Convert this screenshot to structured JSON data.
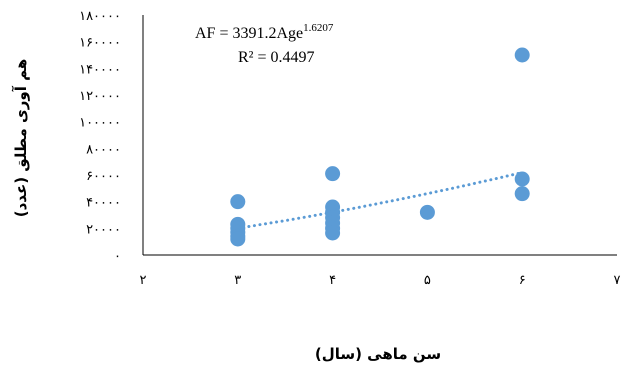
{
  "chart_data": {
    "type": "scatter",
    "title": "",
    "xlabel": "سن ماهی (سال)",
    "ylabel": "هم آوری مطلق (عدد)",
    "xlim": [
      2,
      7
    ],
    "ylim": [
      0,
      180000
    ],
    "x_ticks": [
      2,
      3,
      4,
      5,
      6,
      7
    ],
    "x_tick_labels": [
      "۲",
      "۳",
      "۴",
      "۵",
      "۶",
      "۷"
    ],
    "y_ticks": [
      0,
      20000,
      40000,
      60000,
      80000,
      100000,
      120000,
      140000,
      160000,
      180000
    ],
    "y_tick_labels": [
      "۰",
      "۲۰۰۰۰",
      "۴۰۰۰۰",
      "۶۰۰۰۰",
      "۸۰۰۰۰",
      "۱۰۰۰۰۰",
      "۱۲۰۰۰۰",
      "۱۴۰۰۰۰",
      "۱۶۰۰۰۰",
      "۱۸۰۰۰۰"
    ],
    "grid": false,
    "marker_color": "#5b9bd5",
    "trendline_color": "#5b9bd5",
    "points": [
      {
        "x": 3,
        "y": 40000
      },
      {
        "x": 3,
        "y": 23000
      },
      {
        "x": 3,
        "y": 20000
      },
      {
        "x": 3,
        "y": 17000
      },
      {
        "x": 3,
        "y": 14000
      },
      {
        "x": 3,
        "y": 12000
      },
      {
        "x": 4,
        "y": 61000
      },
      {
        "x": 4,
        "y": 36000
      },
      {
        "x": 4,
        "y": 32000
      },
      {
        "x": 4,
        "y": 28000
      },
      {
        "x": 4,
        "y": 24000
      },
      {
        "x": 4,
        "y": 20000
      },
      {
        "x": 4,
        "y": 16500
      },
      {
        "x": 5,
        "y": 32000
      },
      {
        "x": 6,
        "y": 150000
      },
      {
        "x": 6,
        "y": 57000
      },
      {
        "x": 6,
        "y": 46000
      }
    ],
    "trendline": {
      "type": "power",
      "a": 3391.2,
      "b": 1.6207,
      "x_start": 3,
      "x_end": 6,
      "label_main": "AF = 3391.2Age",
      "label_exponent": "1.6207",
      "r2_label": "R² = 0.4497"
    }
  }
}
